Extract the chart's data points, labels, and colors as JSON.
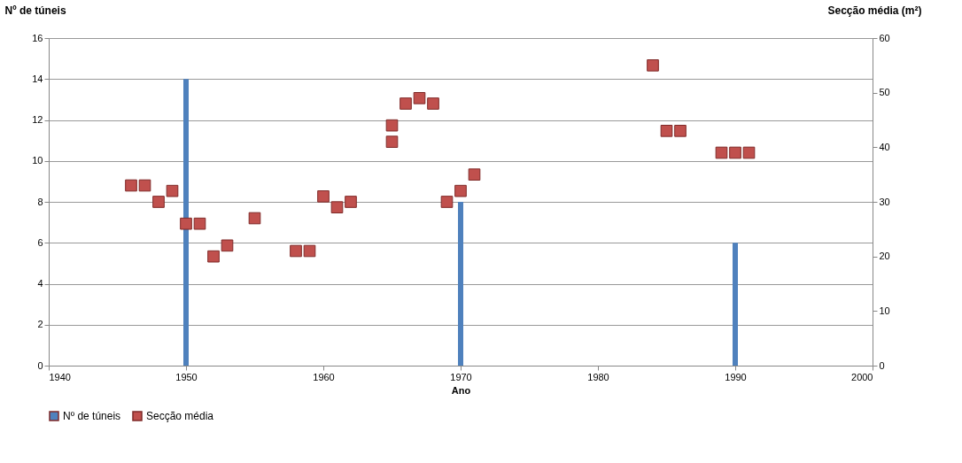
{
  "chart_data": {
    "type": "bar",
    "xlabel": "Ano",
    "ylabel": "Nº de túneis",
    "y2label": "Secção média (m²)",
    "xlim": [
      1940,
      2000
    ],
    "xticks": [
      1940,
      1950,
      1960,
      1970,
      1980,
      1990,
      2000
    ],
    "ylim": [
      0,
      16
    ],
    "yticks": [
      0,
      2,
      4,
      6,
      8,
      10,
      12,
      14,
      16
    ],
    "y2lim": [
      0,
      60
    ],
    "y2ticks": [
      0,
      10,
      20,
      30,
      40,
      50,
      60
    ],
    "grid": "y",
    "legend": "bottom",
    "series": [
      {
        "name": "Nº de túneis",
        "color": "#4f81bd",
        "x": [
          1950,
          1970,
          1990
        ],
        "values": [
          14,
          8,
          6
        ]
      },
      {
        "name": "Secção média",
        "type": "scatter",
        "axis": "y2",
        "marker": "square",
        "color": "#c0504d",
        "x": [
          1946,
          1947,
          1948,
          1949,
          1950,
          1951,
          1952,
          1953,
          1955,
          1958,
          1959,
          1960,
          1961,
          1962,
          1965,
          1965,
          1966,
          1967,
          1968,
          1969,
          1970,
          1971,
          1984,
          1985,
          1986,
          1989,
          1990,
          1991
        ],
        "values": [
          33,
          33,
          30,
          32,
          26,
          26,
          20,
          22,
          27,
          21,
          21,
          31,
          29,
          30,
          44,
          41,
          48,
          49,
          48,
          30,
          32,
          35,
          55,
          43,
          43,
          39,
          39,
          39
        ]
      }
    ]
  }
}
